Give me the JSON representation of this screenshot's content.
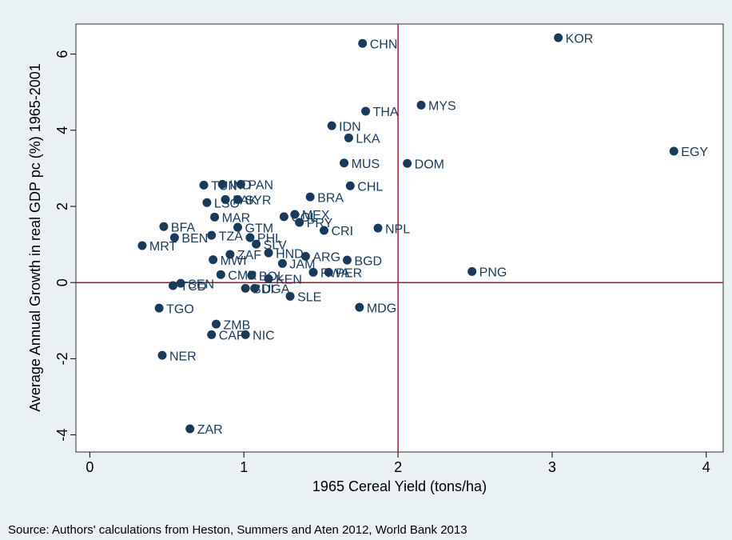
{
  "chart_data": {
    "type": "scatter",
    "xlabel": "1965 Cereal Yield (tons/ha)",
    "ylabel": "Average Annual Growth in real GDP pc (%) 1965-2001",
    "source": "Source: Authors' calculations from Heston, Summers and Aten 2012, World Bank 2013",
    "xlim": [
      -0.09,
      4.11
    ],
    "ylim": [
      -4.45,
      6.79
    ],
    "xticks": [
      0,
      1,
      2,
      3,
      4
    ],
    "yticks": [
      -4,
      -2,
      0,
      2,
      4,
      6
    ],
    "reference_lines": {
      "x": 2,
      "y": 0,
      "color": "#a5163a"
    },
    "color": "#1a3a5c",
    "point_labels": [
      "KOR",
      "CHN",
      "MYS",
      "THA",
      "IDN",
      "LKA",
      "EGY",
      "MUS",
      "DOM",
      "CHL",
      "TUN",
      "IND",
      "PAN",
      "BRA",
      "PAK",
      "SYR",
      "LSO",
      "MEX",
      "COL",
      "PRY",
      "NPL",
      "CRI",
      "MAR",
      "BFA",
      "BEN",
      "MRT",
      "TZA",
      "GTM",
      "PHL",
      "SLV",
      "HND",
      "ARG",
      "BGD",
      "JAM",
      "ZAF",
      "MWI",
      "PER",
      "RWA",
      "KEN",
      "CMR",
      "BOL",
      "SEN",
      "TCD",
      "UGA",
      "BDI",
      "SLE",
      "PNG",
      "MDG",
      "TGO",
      "ZMB",
      "CAF",
      "NIC",
      "NER",
      "ZAR"
    ],
    "x": [
      3.04,
      1.77,
      2.15,
      1.79,
      1.57,
      1.68,
      3.79,
      1.65,
      2.06,
      1.69,
      0.74,
      0.86,
      0.98,
      1.43,
      0.88,
      0.96,
      0.76,
      1.33,
      1.26,
      1.36,
      1.87,
      1.52,
      0.81,
      0.48,
      0.55,
      0.34,
      0.79,
      0.96,
      1.04,
      1.08,
      1.16,
      1.4,
      1.67,
      1.25,
      0.91,
      0.8,
      1.55,
      1.45,
      1.16,
      0.85,
      1.05,
      0.59,
      0.54,
      1.07,
      1.01,
      1.3,
      2.48,
      1.75,
      0.45,
      0.82,
      0.79,
      1.01,
      0.47,
      0.65
    ],
    "values": [
      6.43,
      6.28,
      4.66,
      4.5,
      4.12,
      3.8,
      3.45,
      3.14,
      3.13,
      2.54,
      2.56,
      2.58,
      2.58,
      2.25,
      2.18,
      2.18,
      2.1,
      1.79,
      1.73,
      1.58,
      1.43,
      1.37,
      1.72,
      1.47,
      1.18,
      0.97,
      1.24,
      1.45,
      1.18,
      1.01,
      0.78,
      0.69,
      0.59,
      0.5,
      0.74,
      0.6,
      0.27,
      0.27,
      0.1,
      0.21,
      0.19,
      -0.02,
      -0.08,
      -0.15,
      -0.15,
      -0.36,
      0.29,
      -0.65,
      -0.67,
      -1.09,
      -1.37,
      -1.37,
      -1.91,
      -3.84
    ]
  }
}
